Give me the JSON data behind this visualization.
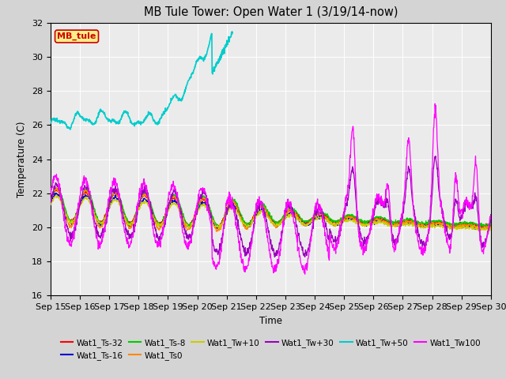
{
  "title": "MB Tule Tower: Open Water 1 (3/19/14-now)",
  "xlabel": "Time",
  "ylabel": "Temperature (C)",
  "ylim": [
    16,
    32
  ],
  "yticks": [
    16,
    18,
    20,
    22,
    24,
    26,
    28,
    30,
    32
  ],
  "xlim": [
    0,
    15
  ],
  "xtick_labels": [
    "Sep 15",
    "Sep 16",
    "Sep 17",
    "Sep 18",
    "Sep 19",
    "Sep 20",
    "Sep 21",
    "Sep 22",
    "Sep 23",
    "Sep 24",
    "Sep 25",
    "Sep 26",
    "Sep 27",
    "Sep 28",
    "Sep 29",
    "Sep 30"
  ],
  "bg_color": "#ebebeb",
  "fig_bg_color": "#d4d4d4",
  "legend_label": "MB_tule",
  "legend_box_facecolor": "#ffee88",
  "legend_box_edgecolor": "#cc0000",
  "legend_text_color": "#cc0000",
  "colors": {
    "ts32": "#ff0000",
    "ts16": "#0000cc",
    "ts8": "#00cc00",
    "ts0": "#ff8800",
    "tw10": "#cccc00",
    "tw30": "#9900bb",
    "tw50": "#00cccc",
    "tw100": "#ff00ff"
  },
  "legend_entries": [
    [
      "Wat1_Ts-32",
      "#ff0000"
    ],
    [
      "Wat1_Ts-16",
      "#0000cc"
    ],
    [
      "Wat1_Ts-8",
      "#00cc00"
    ],
    [
      "Wat1_Ts0",
      "#ff8800"
    ],
    [
      "Wat1_Tw+10",
      "#cccc00"
    ],
    [
      "Wat1_Tw+30",
      "#9900bb"
    ],
    [
      "Wat1_Tw+50",
      "#00cccc"
    ],
    [
      "Wat1_Tw100",
      "#ff00ff"
    ]
  ]
}
